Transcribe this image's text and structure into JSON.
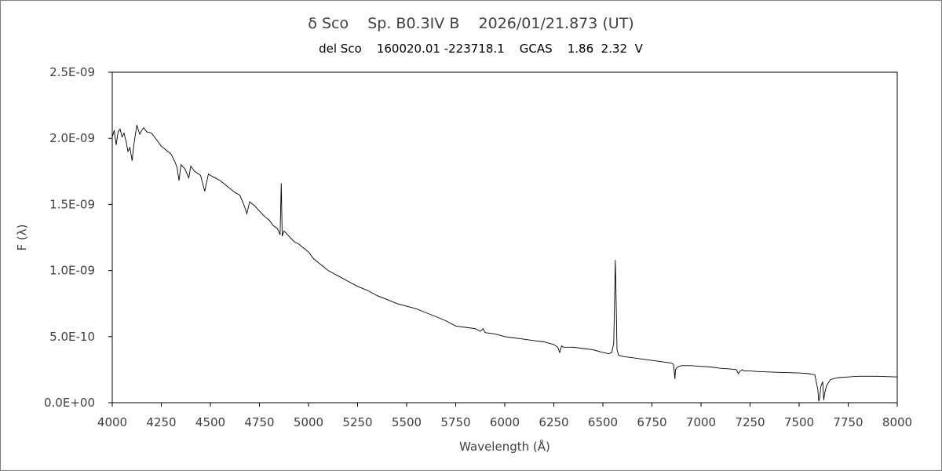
{
  "chart_data": {
    "type": "line",
    "title": "δ Sco    Sp. B0.3IV B    2026/01/21.873 (UT)",
    "subtitle": "del Sco    160020.01 -223718.1    GCAS    1.86  2.32  V",
    "xlabel": "Wavelength (Å)",
    "ylabel": "F (λ)",
    "xlim": [
      4000,
      8000
    ],
    "ylim": [
      0,
      2.5e-09
    ],
    "xticks": [
      4000,
      4250,
      4500,
      4750,
      5000,
      5250,
      5500,
      5750,
      6000,
      6250,
      6500,
      6750,
      7000,
      7250,
      7500,
      7750,
      8000
    ],
    "xtick_labels": [
      "4000",
      "4250",
      "4500",
      "4750",
      "5000",
      "5250",
      "5500",
      "5750",
      "6000",
      "6250",
      "6500",
      "6750",
      "7000",
      "7250",
      "7500",
      "7750",
      "8000"
    ],
    "yticks": [
      0,
      5e-10,
      1e-09,
      1.5e-09,
      2e-09,
      2.5e-09
    ],
    "ytick_labels": [
      "0.0E+00",
      "5.0E-10",
      "1.0E-09",
      "1.5E-09",
      "2.0E-09",
      "2.5E-09"
    ],
    "grid": false,
    "line_color": "#000000",
    "series": [
      {
        "x": [
          4000,
          4010,
          4020,
          4030,
          4040,
          4050,
          4060,
          4070,
          4080,
          4090,
          4101,
          4110,
          4125,
          4140,
          4150,
          4160,
          4175,
          4200,
          4225,
          4250,
          4275,
          4300,
          4320,
          4330,
          4340,
          4350,
          4370,
          4390,
          4400,
          4420,
          4450,
          4471,
          4490,
          4500,
          4525,
          4550,
          4575,
          4600,
          4625,
          4650,
          4670,
          4686,
          4700,
          4725,
          4750,
          4775,
          4800,
          4820,
          4840,
          4850,
          4855,
          4861,
          4866,
          4875,
          4900,
          4925,
          4950,
          4975,
          5000,
          5025,
          5050,
          5075,
          5100,
          5125,
          5150,
          5175,
          5200,
          5250,
          5300,
          5350,
          5400,
          5450,
          5500,
          5550,
          5600,
          5650,
          5700,
          5750,
          5800,
          5850,
          5875,
          5890,
          5900,
          5950,
          6000,
          6050,
          6100,
          6150,
          6200,
          6250,
          6270,
          6280,
          6290,
          6300,
          6350,
          6400,
          6450,
          6500,
          6530,
          6545,
          6555,
          6560,
          6563,
          6566,
          6572,
          6580,
          6600,
          6650,
          6700,
          6750,
          6800,
          6850,
          6860,
          6867,
          6870,
          6880,
          6900,
          6950,
          7000,
          7050,
          7100,
          7150,
          7180,
          7190,
          7200,
          7210,
          7220,
          7250,
          7300,
          7400,
          7500,
          7550,
          7580,
          7595,
          7600,
          7605,
          7610,
          7620,
          7625,
          7630,
          7640,
          7660,
          7700,
          7750,
          7800,
          7900,
          8000
        ],
        "y": [
          2.01e-09,
          2.06e-09,
          1.95e-09,
          2.05e-09,
          2.07e-09,
          2.01e-09,
          2.04e-09,
          1.98e-09,
          1.9e-09,
          1.93e-09,
          1.83e-09,
          1.95e-09,
          2.1e-09,
          2.03e-09,
          2.06e-09,
          2.08e-09,
          2.05e-09,
          2.04e-09,
          1.99e-09,
          1.94e-09,
          1.91e-09,
          1.88e-09,
          1.82e-09,
          1.78e-09,
          1.68e-09,
          1.8e-09,
          1.77e-09,
          1.7e-09,
          1.79e-09,
          1.75e-09,
          1.72e-09,
          1.6e-09,
          1.73e-09,
          1.72e-09,
          1.7e-09,
          1.68e-09,
          1.65e-09,
          1.62e-09,
          1.59e-09,
          1.57e-09,
          1.5e-09,
          1.43e-09,
          1.52e-09,
          1.49e-09,
          1.45e-09,
          1.41e-09,
          1.38e-09,
          1.34e-09,
          1.32e-09,
          1.29e-09,
          1.27e-09,
          1.66e-09,
          1.26e-09,
          1.3e-09,
          1.26e-09,
          1.22e-09,
          1.2e-09,
          1.17e-09,
          1.14e-09,
          1.09e-09,
          1.06e-09,
          1.03e-09,
          1e-09,
          9.8e-10,
          9.6e-10,
          9.4e-10,
          9.2e-10,
          8.8e-10,
          8.5e-10,
          8.1e-10,
          7.8e-10,
          7.5e-10,
          7.3e-10,
          7.1e-10,
          6.8e-10,
          6.5e-10,
          6.2e-10,
          5.8e-10,
          5.7e-10,
          5.6e-10,
          5.4e-10,
          5.6e-10,
          5.3e-10,
          5.2e-10,
          5e-10,
          4.9e-10,
          4.8e-10,
          4.7e-10,
          4.6e-10,
          4.4e-10,
          4.2e-10,
          3.8e-10,
          4.3e-10,
          4.2e-10,
          4.2e-10,
          4.1e-10,
          4e-10,
          3.8e-10,
          3.7e-10,
          3.8e-10,
          4.5e-10,
          8e-10,
          1.08e-09,
          9e-10,
          4e-10,
          3.6e-10,
          3.5e-10,
          3.4e-10,
          3.3e-10,
          3.2e-10,
          3.1e-10,
          3e-10,
          2.9e-10,
          1.8e-10,
          2.5e-10,
          2.7e-10,
          2.8e-10,
          2.8e-10,
          2.75e-10,
          2.7e-10,
          2.6e-10,
          2.55e-10,
          2.5e-10,
          2.2e-10,
          2.4e-10,
          2.5e-10,
          2.4e-10,
          2.4e-10,
          2.35e-10,
          2.3e-10,
          2.25e-10,
          2.2e-10,
          2.1e-10,
          1e-10,
          1e-11,
          4e-11,
          1.2e-10,
          1.6e-10,
          2e-11,
          7e-11,
          1.3e-10,
          1.75e-10,
          1.9e-10,
          1.95e-10,
          2e-10,
          2e-10,
          1.95e-10
        ]
      }
    ]
  }
}
